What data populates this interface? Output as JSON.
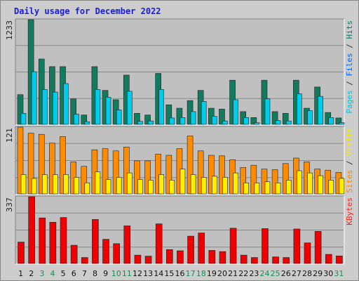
{
  "chart_data": {
    "type": "bar",
    "title": "Daily usage for December 2022",
    "categories": [
      "1",
      "2",
      "3",
      "4",
      "5",
      "6",
      "7",
      "8",
      "9",
      "10",
      "11",
      "12",
      "13",
      "14",
      "15",
      "16",
      "17",
      "18",
      "19",
      "20",
      "21",
      "22",
      "23",
      "24",
      "25",
      "26",
      "27",
      "28",
      "29",
      "30",
      "31"
    ],
    "weekend_days": [
      "3",
      "4",
      "10",
      "11",
      "17",
      "18",
      "24",
      "25",
      "31"
    ],
    "grid": true,
    "panels": [
      {
        "id": "top",
        "ymax_label": "1233",
        "ymax": 1233,
        "legend": [
          {
            "text": "Pages",
            "color": "#00c6e0"
          },
          {
            "text": " / ",
            "color": "#333333"
          },
          {
            "text": "Files",
            "color": "#0066ff"
          },
          {
            "text": " / ",
            "color": "#333333"
          },
          {
            "text": "Hits",
            "color": "#00806a"
          }
        ],
        "series": [
          {
            "name": "Hits",
            "color": "#127a5f",
            "values": [
              350,
              1233,
              770,
              680,
              680,
              300,
              110,
              680,
              400,
              290,
              580,
              130,
              110,
              600,
              230,
              190,
              280,
              400,
              190,
              180,
              520,
              150,
              80,
              520,
              150,
              130,
              520,
              190,
              440,
              140,
              75
            ]
          },
          {
            "name": "Files",
            "color": "#00ccee",
            "values": [
              130,
              620,
              410,
              380,
              480,
              120,
              30,
              410,
              320,
              170,
              390,
              35,
              40,
              410,
              75,
              80,
              150,
              270,
              95,
              40,
              290,
              80,
              20,
              300,
              45,
              40,
              360,
              160,
              330,
              80,
              20
            ]
          }
        ]
      },
      {
        "id": "middle",
        "ymax_label": "121",
        "ymax": 121,
        "legend": [
          {
            "text": "Sites",
            "color": "#ff8800"
          },
          {
            "text": " / ",
            "color": "#333333"
          },
          {
            "text": "Visits",
            "color": "#eeee00"
          }
        ],
        "series": [
          {
            "name": "Visits",
            "color": "#ff8c00",
            "values": [
              121,
              110,
              108,
              92,
              104,
              58,
              50,
              80,
              82,
              78,
              85,
              60,
              60,
              72,
              70,
              82,
              105,
              78,
              70,
              69,
              62,
              48,
              52,
              45,
              44,
              55,
              65,
              58,
              45,
              43,
              39
            ]
          },
          {
            "name": "Sites",
            "color": "#ffee00",
            "values": [
              35,
              28,
              35,
              35,
              35,
              30,
              20,
              40,
              26,
              30,
              38,
              26,
              25,
              35,
              25,
              45,
              35,
              30,
              32,
              30,
              38,
              20,
              20,
              22,
              20,
              25,
              42,
              38,
              33,
              25,
              28
            ]
          }
        ]
      },
      {
        "id": "bottom",
        "ymax_label": "337",
        "ymax": 337,
        "legend": [
          {
            "text": "KBytes",
            "color": "#ff2222"
          }
        ],
        "series": [
          {
            "name": "KBytes",
            "color": "#ee0000",
            "values": [
              108,
              337,
              230,
              208,
              232,
              92,
              30,
              222,
              122,
              100,
              190,
              42,
              37,
              200,
              70,
              64,
              138,
              154,
              66,
              60,
              178,
              42,
              30,
              176,
              33,
              30,
              174,
              104,
              162,
              46,
              38
            ]
          }
        ]
      }
    ]
  }
}
